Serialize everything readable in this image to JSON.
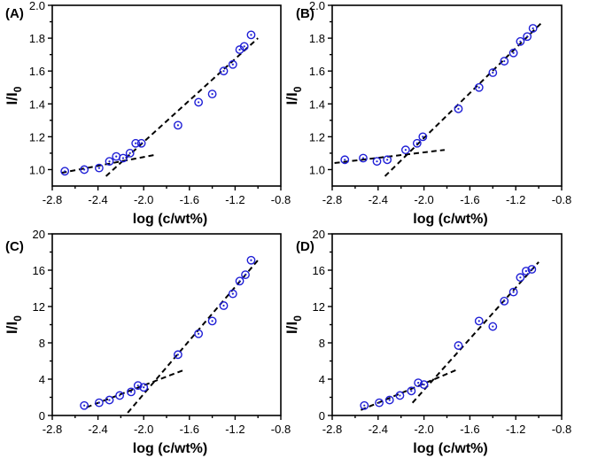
{
  "chart_data": [
    {
      "type": "scatter",
      "panel": "(A)",
      "xlabel": "log (c/wt%)",
      "ylabel": "I/I",
      "ylabel_sub": "0",
      "xlim": [
        -2.8,
        -0.8
      ],
      "ylim": [
        0.9,
        2.0
      ],
      "xticks": [
        "-2.8",
        "-2.4",
        "-2.0",
        "-1.6",
        "-1.2",
        "-0.8"
      ],
      "yticks": [
        "1.0",
        "1.2",
        "1.4",
        "1.6",
        "1.8",
        "2.0"
      ],
      "points": [
        [
          -2.69,
          0.99
        ],
        [
          -2.52,
          1.0
        ],
        [
          -2.39,
          1.01
        ],
        [
          -2.3,
          1.05
        ],
        [
          -2.24,
          1.08
        ],
        [
          -2.18,
          1.07
        ],
        [
          -2.12,
          1.1
        ],
        [
          -2.07,
          1.16
        ],
        [
          -2.02,
          1.16
        ],
        [
          -1.7,
          1.27
        ],
        [
          -1.52,
          1.41
        ],
        [
          -1.4,
          1.46
        ],
        [
          -1.3,
          1.6
        ],
        [
          -1.22,
          1.64
        ],
        [
          -1.16,
          1.73
        ],
        [
          -1.12,
          1.75
        ],
        [
          -1.06,
          1.82
        ]
      ],
      "fit_lines": [
        {
          "x": [
            -2.72,
            -1.9
          ],
          "y": [
            0.98,
            1.09
          ]
        },
        {
          "x": [
            -2.33,
            -1.0
          ],
          "y": [
            0.96,
            1.8
          ]
        }
      ]
    },
    {
      "type": "scatter",
      "panel": "(B)",
      "xlabel": "log (c/wt%)",
      "ylabel": "I/I",
      "ylabel_sub": "0",
      "xlim": [
        -2.8,
        -0.8
      ],
      "ylim": [
        0.9,
        2.0
      ],
      "xticks": [
        "-2.8",
        "-2.4",
        "-2.0",
        "-1.6",
        "-1.2",
        "-0.8"
      ],
      "yticks": [
        "1.0",
        "1.2",
        "1.4",
        "1.6",
        "1.8",
        "2.0"
      ],
      "points": [
        [
          -2.69,
          1.06
        ],
        [
          -2.53,
          1.07
        ],
        [
          -2.41,
          1.05
        ],
        [
          -2.32,
          1.06
        ],
        [
          -2.16,
          1.12
        ],
        [
          -2.06,
          1.16
        ],
        [
          -2.01,
          1.2
        ],
        [
          -1.7,
          1.37
        ],
        [
          -1.52,
          1.5
        ],
        [
          -1.4,
          1.59
        ],
        [
          -1.3,
          1.66
        ],
        [
          -1.22,
          1.71
        ],
        [
          -1.16,
          1.78
        ],
        [
          -1.1,
          1.81
        ],
        [
          -1.05,
          1.86
        ]
      ],
      "fit_lines": [
        {
          "x": [
            -2.78,
            -1.82
          ],
          "y": [
            1.04,
            1.12
          ]
        },
        {
          "x": [
            -2.34,
            -0.98
          ],
          "y": [
            0.96,
            1.89
          ]
        }
      ]
    },
    {
      "type": "scatter",
      "panel": "(C)",
      "xlabel": "log (c/wt%)",
      "ylabel": "I/I",
      "ylabel_sub": "0",
      "xlim": [
        -2.8,
        -0.8
      ],
      "ylim": [
        0,
        20
      ],
      "xticks": [
        "-2.8",
        "-2.4",
        "-2.0",
        "-1.6",
        "-1.2",
        "-0.8"
      ],
      "yticks": [
        "0",
        "4",
        "8",
        "12",
        "16",
        "20"
      ],
      "points": [
        [
          -2.52,
          1.1
        ],
        [
          -2.39,
          1.4
        ],
        [
          -2.3,
          1.7
        ],
        [
          -2.21,
          2.2
        ],
        [
          -2.11,
          2.6
        ],
        [
          -2.05,
          3.3
        ],
        [
          -2.0,
          3.1
        ],
        [
          -1.7,
          6.7
        ],
        [
          -1.52,
          9.0
        ],
        [
          -1.4,
          10.4
        ],
        [
          -1.3,
          12.1
        ],
        [
          -1.22,
          13.4
        ],
        [
          -1.16,
          14.8
        ],
        [
          -1.11,
          15.5
        ],
        [
          -1.06,
          17.1
        ]
      ],
      "fit_lines": [
        {
          "x": [
            -2.5,
            -1.65
          ],
          "y": [
            0.9,
            5.0
          ]
        },
        {
          "x": [
            -2.14,
            -1.0
          ],
          "y": [
            0.3,
            17.1
          ]
        }
      ]
    },
    {
      "type": "scatter",
      "panel": "(D)",
      "xlabel": "log (c/wt%)",
      "ylabel": "I/I",
      "ylabel_sub": "0",
      "xlim": [
        -2.8,
        -0.8
      ],
      "ylim": [
        0,
        20
      ],
      "xticks": [
        "-2.8",
        "-2.4",
        "-2.0",
        "-1.6",
        "-1.2",
        "-0.8"
      ],
      "yticks": [
        "0",
        "4",
        "8",
        "12",
        "16",
        "20"
      ],
      "points": [
        [
          -2.52,
          1.1
        ],
        [
          -2.39,
          1.4
        ],
        [
          -2.3,
          1.7
        ],
        [
          -2.21,
          2.2
        ],
        [
          -2.11,
          2.7
        ],
        [
          -2.05,
          3.6
        ],
        [
          -2.0,
          3.4
        ],
        [
          -1.7,
          7.7
        ],
        [
          -1.52,
          10.4
        ],
        [
          -1.4,
          9.8
        ],
        [
          -1.3,
          12.6
        ],
        [
          -1.22,
          13.6
        ],
        [
          -1.16,
          15.2
        ],
        [
          -1.11,
          15.9
        ],
        [
          -1.06,
          16.1
        ]
      ],
      "fit_lines": [
        {
          "x": [
            -2.55,
            -1.72
          ],
          "y": [
            0.6,
            5.0
          ]
        },
        {
          "x": [
            -2.1,
            -1.0
          ],
          "y": [
            1.4,
            16.9
          ]
        }
      ]
    }
  ]
}
